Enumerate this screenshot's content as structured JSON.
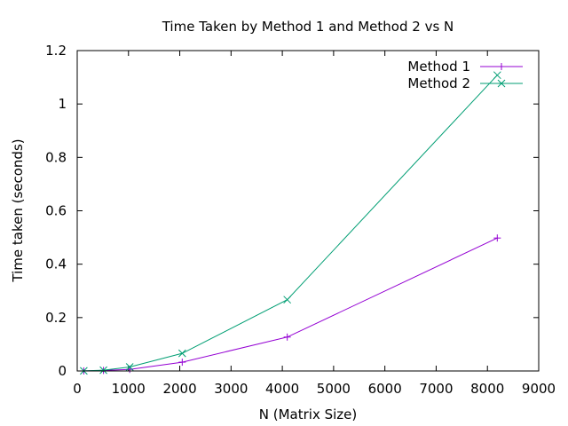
{
  "chart_data": {
    "type": "line",
    "title": "Time Taken by Method 1 and Method 2 vs N",
    "xlabel": "N (Matrix Size)",
    "ylabel": "Time taken (seconds)",
    "xlim": [
      0,
      9000
    ],
    "ylim": [
      0,
      1.2
    ],
    "xticks": [
      "0",
      "1000",
      "2000",
      "3000",
      "4000",
      "5000",
      "6000",
      "7000",
      "8000",
      "9000"
    ],
    "yticks": [
      "0",
      "0.2",
      "0.4",
      "0.6",
      "0.8",
      "1",
      "1.2"
    ],
    "legend_position": "top-right",
    "grid": false,
    "x": [
      128,
      512,
      1024,
      2048,
      4096,
      8192
    ],
    "series": [
      {
        "name": "Method 1",
        "color": "#9400d3",
        "marker": "plus",
        "values": [
          0.0002,
          0.002,
          0.006,
          0.033,
          0.127,
          0.498
        ]
      },
      {
        "name": "Method 2",
        "color": "#009e73",
        "marker": "cross",
        "values": [
          0.0003,
          0.003,
          0.015,
          0.066,
          0.267,
          1.108
        ]
      }
    ]
  }
}
